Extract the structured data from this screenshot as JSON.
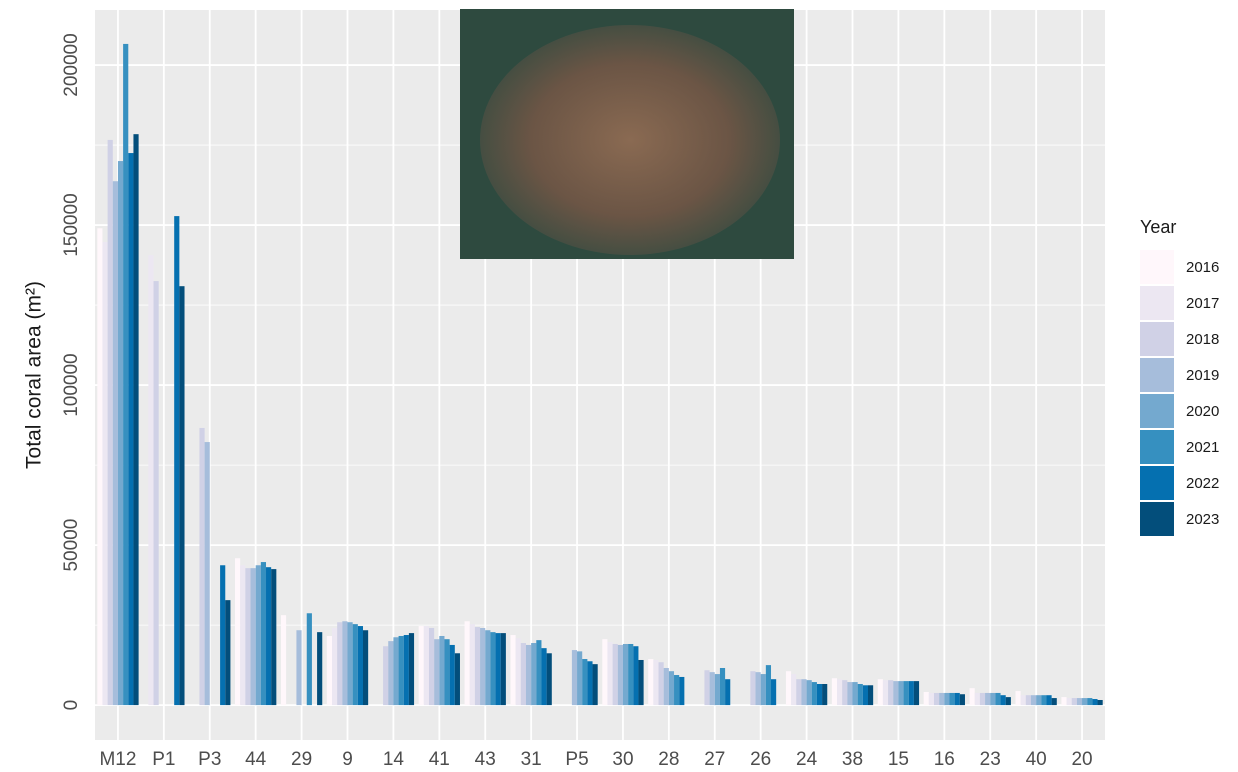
{
  "chart_data": {
    "type": "bar",
    "y_label": "Total coral area (m²)",
    "legend_title": "Year",
    "categories": [
      "M12",
      "P1",
      "P3",
      "44",
      "29",
      "9",
      "14",
      "41",
      "43",
      "31",
      "P5",
      "30",
      "28",
      "27",
      "26",
      "24",
      "38",
      "15",
      "16",
      "23",
      "40",
      "20"
    ],
    "series": [
      {
        "name": "2016",
        "color": "#fff7fb",
        "values": [
          149000,
          null,
          null,
          45900,
          28100,
          21600,
          null,
          24700,
          26200,
          21900,
          null,
          20600,
          14400,
          null,
          null,
          10600,
          8400,
          8100,
          4100,
          5300,
          4400,
          2500
        ]
      },
      {
        "name": "2017",
        "color": "#ece7f2",
        "values": [
          144700,
          140600,
          null,
          43700,
          null,
          24100,
          null,
          24700,
          25300,
          20900,
          null,
          19700,
          14100,
          null,
          null,
          9700,
          8100,
          7800,
          3800,
          3800,
          3100,
          2200
        ]
      },
      {
        "name": "2018",
        "color": "#d0d1e6",
        "values": [
          176600,
          132500,
          86600,
          42800,
          null,
          25900,
          18400,
          24100,
          24400,
          19400,
          null,
          19100,
          13400,
          10900,
          10600,
          8100,
          7800,
          7800,
          3800,
          3800,
          3100,
          2200
        ]
      },
      {
        "name": "2019",
        "color": "#a6bddb",
        "values": [
          163700,
          null,
          82200,
          42800,
          23400,
          26200,
          20000,
          20600,
          24100,
          18800,
          17200,
          18800,
          11600,
          10300,
          10300,
          8100,
          7200,
          7500,
          3800,
          3800,
          3100,
          2200
        ]
      },
      {
        "name": "2020",
        "color": "#74a9cf",
        "values": [
          170000,
          null,
          null,
          43700,
          null,
          25900,
          21200,
          21600,
          23400,
          19400,
          16800,
          19100,
          10600,
          9700,
          9700,
          7800,
          7200,
          7500,
          3800,
          3800,
          3100,
          2200
        ]
      },
      {
        "name": "2021",
        "color": "#3690c0",
        "values": [
          206600,
          null,
          null,
          44700,
          28700,
          25300,
          21600,
          20600,
          22800,
          20300,
          14400,
          19100,
          9400,
          11600,
          12500,
          7200,
          6600,
          7500,
          3800,
          3800,
          3100,
          2200
        ]
      },
      {
        "name": "2022",
        "color": "#0570b0",
        "values": [
          172500,
          152800,
          43700,
          43100,
          null,
          24700,
          21900,
          18800,
          22500,
          17800,
          13700,
          18400,
          8800,
          8100,
          8100,
          6600,
          6200,
          7500,
          3800,
          3100,
          3100,
          1900
        ]
      },
      {
        "name": "2023",
        "color": "#034e7b",
        "values": [
          178400,
          130900,
          32800,
          42500,
          22800,
          23400,
          22500,
          16200,
          22500,
          16200,
          12800,
          14100,
          null,
          null,
          null,
          6600,
          6200,
          7500,
          3400,
          2500,
          2200,
          1600
        ]
      }
    ],
    "ylim": [
      -10900,
      217200
    ],
    "yticks": [
      0,
      50000,
      100000,
      150000,
      200000
    ],
    "grid": true,
    "legend": "right"
  }
}
